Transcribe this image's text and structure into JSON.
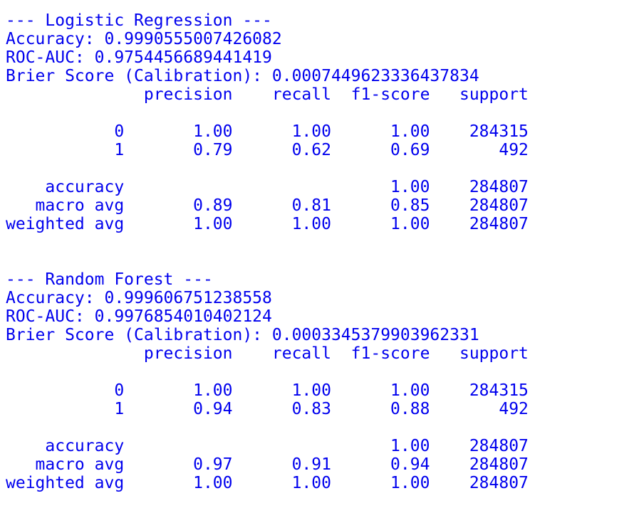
{
  "output": {
    "lines": [
      "--- Logistic Regression ---",
      "Accuracy: 0.9990555007426082",
      "ROC-AUC: 0.9754456689441419",
      "Brier Score (Calibration): 0.0007449623336437834",
      "              precision    recall  f1-score   support",
      "",
      "           0       1.00      1.00      1.00    284315",
      "           1       0.79      0.62      0.69       492",
      "",
      "    accuracy                           1.00    284807",
      "   macro avg       0.89      0.81      0.85    284807",
      "weighted avg       1.00      1.00      1.00    284807",
      "",
      "",
      "--- Random Forest ---",
      "Accuracy: 0.999606751238558",
      "ROC-AUC: 0.9976854010402124",
      "Brier Score (Calibration): 0.0003345379903962331",
      "              precision    recall  f1-score   support",
      "",
      "           0       1.00      1.00      1.00    284315",
      "           1       0.94      0.83      0.88       492",
      "",
      "    accuracy                           1.00    284807",
      "   macro avg       0.97      0.91      0.94    284807",
      "weighted avg       1.00      1.00      1.00    284807"
    ]
  },
  "colors": {
    "text": "#0000ee",
    "background": "#ffffff"
  }
}
